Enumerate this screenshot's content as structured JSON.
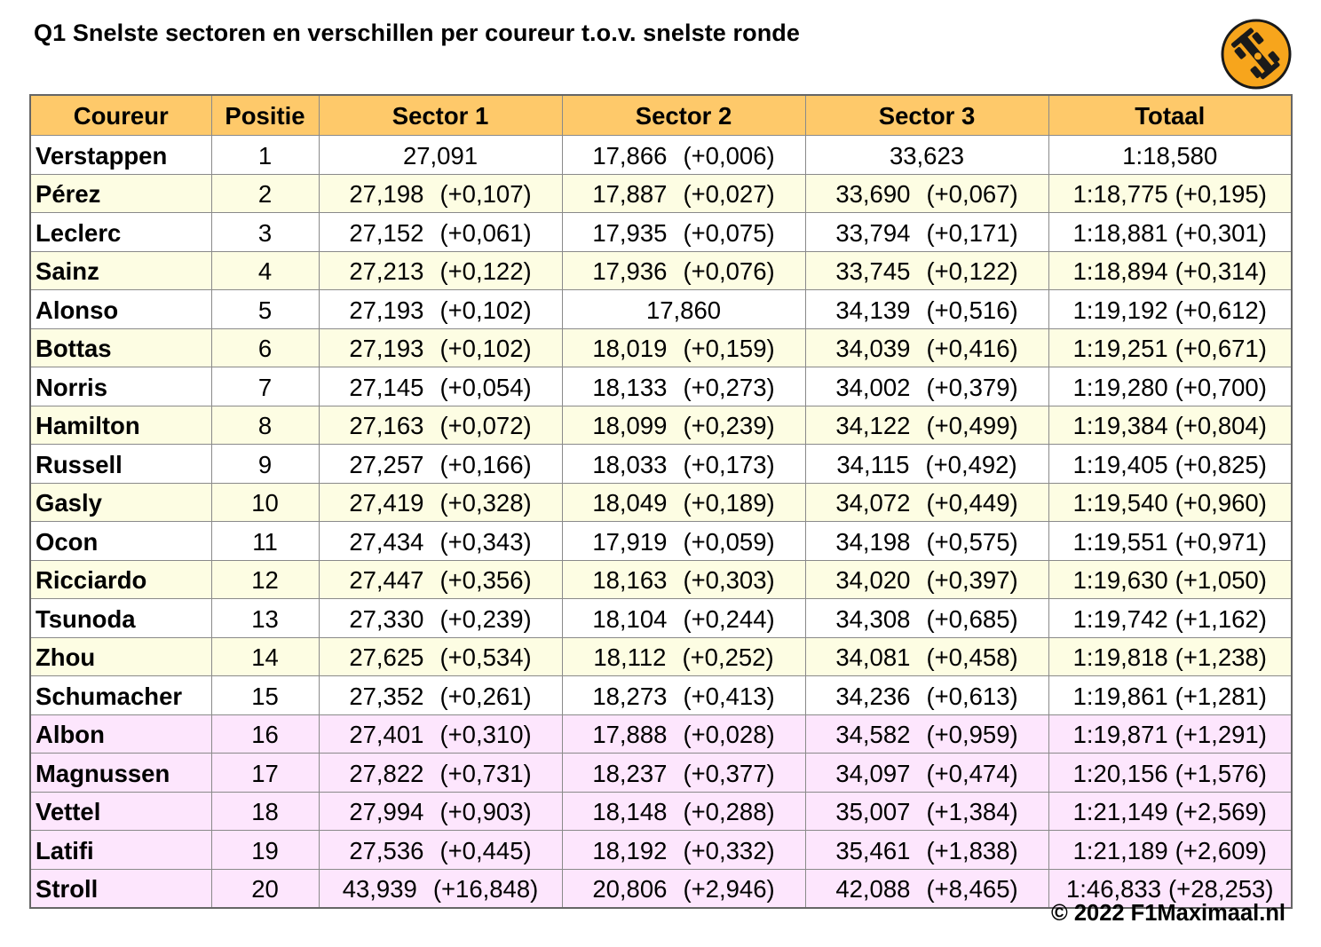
{
  "title": "Q1 Snelste sectoren en verschillen per coureur t.o.v. snelste ronde",
  "logo_icon": "race-car-icon",
  "colors": {
    "header": "#fec96a",
    "row_light": "#fdfde3",
    "row_pink": "#fde6fd",
    "logo_circle": "#f7a51c"
  },
  "columns": [
    "Coureur",
    "Positie",
    "Sector 1",
    "Sector 2",
    "Sector 3",
    "Totaal"
  ],
  "rows": [
    {
      "name": "Verstappen",
      "pos": "1",
      "s1": "27,091",
      "s1d": "",
      "s2": "17,866",
      "s2d": "(+0,006)",
      "s3": "33,623",
      "s3d": "",
      "tot": "1:18,580",
      "totd": ""
    },
    {
      "name": "Pérez",
      "pos": "2",
      "s1": "27,198",
      "s1d": "(+0,107)",
      "s2": "17,887",
      "s2d": "(+0,027)",
      "s3": "33,690",
      "s3d": "(+0,067)",
      "tot": "1:18,775",
      "totd": "(+0,195)"
    },
    {
      "name": "Leclerc",
      "pos": "3",
      "s1": "27,152",
      "s1d": "(+0,061)",
      "s2": "17,935",
      "s2d": "(+0,075)",
      "s3": "33,794",
      "s3d": "(+0,171)",
      "tot": "1:18,881",
      "totd": "(+0,301)"
    },
    {
      "name": "Sainz",
      "pos": "4",
      "s1": "27,213",
      "s1d": "(+0,122)",
      "s2": "17,936",
      "s2d": "(+0,076)",
      "s3": "33,745",
      "s3d": "(+0,122)",
      "tot": "1:18,894",
      "totd": "(+0,314)"
    },
    {
      "name": "Alonso",
      "pos": "5",
      "s1": "27,193",
      "s1d": "(+0,102)",
      "s2": "17,860",
      "s2d": "",
      "s3": "34,139",
      "s3d": "(+0,516)",
      "tot": "1:19,192",
      "totd": "(+0,612)"
    },
    {
      "name": "Bottas",
      "pos": "6",
      "s1": "27,193",
      "s1d": "(+0,102)",
      "s2": "18,019",
      "s2d": "(+0,159)",
      "s3": "34,039",
      "s3d": "(+0,416)",
      "tot": "1:19,251",
      "totd": "(+0,671)"
    },
    {
      "name": "Norris",
      "pos": "7",
      "s1": "27,145",
      "s1d": "(+0,054)",
      "s2": "18,133",
      "s2d": "(+0,273)",
      "s3": "34,002",
      "s3d": "(+0,379)",
      "tot": "1:19,280",
      "totd": "(+0,700)"
    },
    {
      "name": "Hamilton",
      "pos": "8",
      "s1": "27,163",
      "s1d": "(+0,072)",
      "s2": "18,099",
      "s2d": "(+0,239)",
      "s3": "34,122",
      "s3d": "(+0,499)",
      "tot": "1:19,384",
      "totd": "(+0,804)"
    },
    {
      "name": "Russell",
      "pos": "9",
      "s1": "27,257",
      "s1d": "(+0,166)",
      "s2": "18,033",
      "s2d": "(+0,173)",
      "s3": "34,115",
      "s3d": "(+0,492)",
      "tot": "1:19,405",
      "totd": "(+0,825)"
    },
    {
      "name": "Gasly",
      "pos": "10",
      "s1": "27,419",
      "s1d": "(+0,328)",
      "s2": "18,049",
      "s2d": "(+0,189)",
      "s3": "34,072",
      "s3d": "(+0,449)",
      "tot": "1:19,540",
      "totd": "(+0,960)"
    },
    {
      "name": "Ocon",
      "pos": "11",
      "s1": "27,434",
      "s1d": "(+0,343)",
      "s2": "17,919",
      "s2d": "(+0,059)",
      "s3": "34,198",
      "s3d": "(+0,575)",
      "tot": "1:19,551",
      "totd": "(+0,971)"
    },
    {
      "name": "Ricciardo",
      "pos": "12",
      "s1": "27,447",
      "s1d": "(+0,356)",
      "s2": "18,163",
      "s2d": "(+0,303)",
      "s3": "34,020",
      "s3d": "(+0,397)",
      "tot": "1:19,630",
      "totd": "(+1,050)"
    },
    {
      "name": "Tsunoda",
      "pos": "13",
      "s1": "27,330",
      "s1d": "(+0,239)",
      "s2": "18,104",
      "s2d": "(+0,244)",
      "s3": "34,308",
      "s3d": "(+0,685)",
      "tot": "1:19,742",
      "totd": "(+1,162)"
    },
    {
      "name": "Zhou",
      "pos": "14",
      "s1": "27,625",
      "s1d": "(+0,534)",
      "s2": "18,112",
      "s2d": "(+0,252)",
      "s3": "34,081",
      "s3d": "(+0,458)",
      "tot": "1:19,818",
      "totd": "(+1,238)"
    },
    {
      "name": "Schumacher",
      "pos": "15",
      "s1": "27,352",
      "s1d": "(+0,261)",
      "s2": "18,273",
      "s2d": "(+0,413)",
      "s3": "34,236",
      "s3d": "(+0,613)",
      "tot": "1:19,861",
      "totd": "(+1,281)"
    },
    {
      "name": "Albon",
      "pos": "16",
      "s1": "27,401",
      "s1d": "(+0,310)",
      "s2": "17,888",
      "s2d": "(+0,028)",
      "s3": "34,582",
      "s3d": "(+0,959)",
      "tot": "1:19,871",
      "totd": "(+1,291)"
    },
    {
      "name": "Magnussen",
      "pos": "17",
      "s1": "27,822",
      "s1d": "(+0,731)",
      "s2": "18,237",
      "s2d": "(+0,377)",
      "s3": "34,097",
      "s3d": "(+0,474)",
      "tot": "1:20,156",
      "totd": "(+1,576)"
    },
    {
      "name": "Vettel",
      "pos": "18",
      "s1": "27,994",
      "s1d": "(+0,903)",
      "s2": "18,148",
      "s2d": "(+0,288)",
      "s3": "35,007",
      "s3d": "(+1,384)",
      "tot": "1:21,149",
      "totd": "(+2,569)"
    },
    {
      "name": "Latifi",
      "pos": "19",
      "s1": "27,536",
      "s1d": "(+0,445)",
      "s2": "18,192",
      "s2d": "(+0,332)",
      "s3": "35,461",
      "s3d": "(+1,838)",
      "tot": "1:21,189",
      "totd": "(+2,609)"
    },
    {
      "name": "Stroll",
      "pos": "20",
      "s1": "43,939",
      "s1d": "(+16,848)",
      "s2": "20,806",
      "s2d": "(+2,946)",
      "s3": "42,088",
      "s3d": "(+8,465)",
      "tot": "1:46,833",
      "totd": "(+28,253)"
    }
  ],
  "footer": "© 2022 F1Maximaal.nl"
}
